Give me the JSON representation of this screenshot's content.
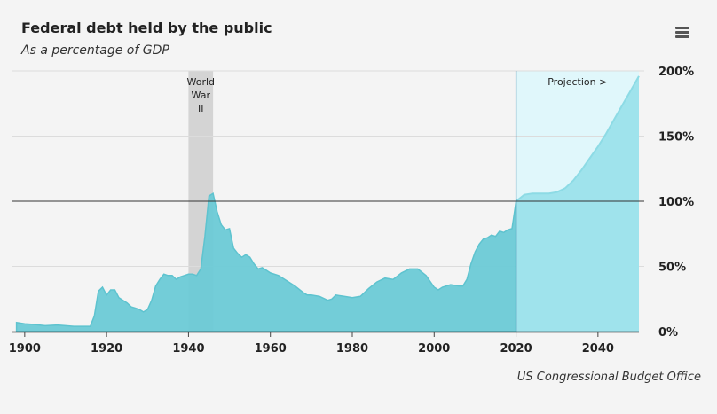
{
  "header": {
    "title": "Federal debt held by the public",
    "subtitle": "As a percentage of GDP"
  },
  "source": "US Congressional Budget Office",
  "menu_icon": "hamburger-menu-icon",
  "colors": {
    "historical_fill": "#6ccad6",
    "historical_line": "#5ec3cf",
    "projection_fill": "#9fe3ec",
    "projection_band": "#e0f7fb",
    "wwii_band": "#d4d4d4",
    "divider_line": "#1f5f8b"
  },
  "chart_data": {
    "type": "area",
    "title": "Federal debt held by the public",
    "subtitle": "As a percentage of GDP",
    "xlim": [
      1897,
      2050
    ],
    "ylim": [
      0,
      200
    ],
    "x_ticks": [
      1900,
      1920,
      1940,
      1960,
      1980,
      2000,
      2020,
      2040
    ],
    "y_ticks": [
      0,
      50,
      100,
      150,
      200
    ],
    "y_tick_labels": [
      "0%",
      "50%",
      "100%",
      "150%",
      "200%"
    ],
    "y_axis_side": "right",
    "grid": true,
    "reference_line": 100,
    "annotations": [
      {
        "text": "World War II",
        "lines": [
          "World",
          "War",
          "II"
        ],
        "x_start": 1940,
        "x_end": 1946
      },
      {
        "text": "Projection >",
        "x_start": 2020,
        "x_end": 2050
      }
    ],
    "series": [
      {
        "type": "historical",
        "x": [
          1898,
          1900,
          1902,
          1905,
          1908,
          1910,
          1912,
          1914,
          1916,
          1917,
          1918,
          1919,
          1920,
          1921,
          1922,
          1923,
          1924,
          1925,
          1926,
          1927,
          1928,
          1929,
          1930,
          1931,
          1932,
          1933,
          1934,
          1935,
          1936,
          1937,
          1938,
          1939,
          1940,
          1941,
          1942,
          1943,
          1944,
          1945,
          1946,
          1947,
          1948,
          1949,
          1950,
          1951,
          1952,
          1953,
          1954,
          1955,
          1956,
          1957,
          1958,
          1959,
          1960,
          1962,
          1964,
          1966,
          1968,
          1969,
          1970,
          1972,
          1974,
          1975,
          1976,
          1978,
          1980,
          1982,
          1984,
          1986,
          1988,
          1990,
          1992,
          1994,
          1996,
          1998,
          2000,
          2001,
          2002,
          2004,
          2006,
          2007,
          2008,
          2009,
          2010,
          2011,
          2012,
          2013,
          2014,
          2015,
          2016,
          2017,
          2018,
          2019,
          2020
        ],
        "values": [
          7,
          6,
          5.5,
          4.5,
          5,
          4.5,
          4,
          4,
          4,
          12,
          31,
          34,
          28,
          32,
          32,
          26,
          24,
          22,
          19,
          18,
          17,
          15,
          17,
          24,
          35,
          40,
          44,
          43,
          43,
          40,
          42,
          43,
          44,
          44,
          43,
          48,
          73,
          104,
          106,
          92,
          82,
          78,
          79,
          64,
          60,
          57,
          59,
          57,
          52,
          48,
          49,
          47,
          45,
          43,
          39,
          35,
          30,
          28,
          28,
          27,
          24,
          25,
          28,
          27,
          26,
          27,
          33,
          38,
          41,
          40,
          45,
          48,
          48,
          43,
          34,
          32,
          34,
          36,
          35,
          35,
          40,
          52,
          61,
          67,
          71,
          72,
          74,
          73,
          77,
          76,
          78,
          79,
          100
        ]
      },
      {
        "type": "projection",
        "x": [
          2020,
          2022,
          2024,
          2026,
          2028,
          2030,
          2032,
          2034,
          2036,
          2038,
          2040,
          2042,
          2044,
          2046,
          2048,
          2050
        ],
        "values": [
          100,
          105,
          106,
          106,
          106,
          107,
          110,
          116,
          124,
          133,
          142,
          152,
          163,
          174,
          185,
          196
        ]
      }
    ]
  }
}
